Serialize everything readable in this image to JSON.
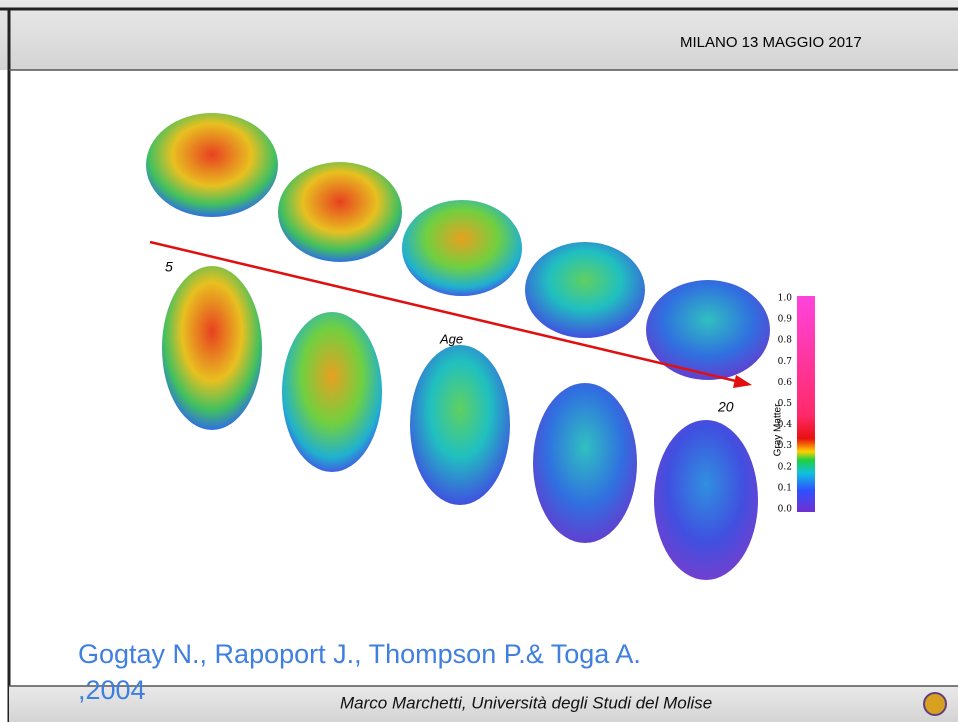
{
  "header": {
    "title": "MILANO 13 MAGGIO 2017"
  },
  "figure": {
    "start_label": "5",
    "axis_label": "Age",
    "end_label": "20",
    "colorbar": {
      "label": "Gray Matter",
      "ticks": [
        "1.0",
        "0.9",
        "0.8",
        "0.7",
        "0.6",
        "0.5",
        "0.4",
        "0.3",
        "0.2",
        "0.1",
        "0.0"
      ]
    }
  },
  "citation": {
    "lines": [
      "Gogtay N., Rapoport J., Thompson P.& Toga A.",
      ",2004"
    ]
  },
  "footer": {
    "text": "Marco Marchetti, Università degli Studi del Molise"
  }
}
